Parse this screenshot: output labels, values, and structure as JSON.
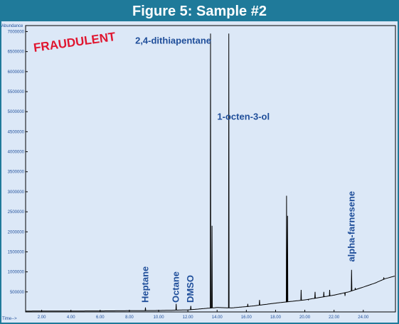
{
  "figure_title": "Figure 5: Sample #2",
  "stamp": "FRAUDULENT",
  "colors": {
    "header": "#1f7a9a",
    "plot_bg": "#dce8f7",
    "trace": "#000000",
    "label": "#1f4e9a",
    "stamp": "#e0152f"
  },
  "chart_data": {
    "type": "line",
    "ylabel": "Abundance",
    "xlabel": "Time-->",
    "xlim": [
      0.9,
      26.2
    ],
    "ylim": [
      0,
      7150000
    ],
    "x_ticks": [
      "2.00",
      "4.00",
      "6.00",
      "8.00",
      "10.00",
      "12.00",
      "14.00",
      "16.00",
      "18.00",
      "20.00",
      "22.00",
      "24.00"
    ],
    "y_ticks": [
      "7000000",
      "6500000",
      "6000000",
      "5500000",
      "5000000",
      "4500000",
      "4000000",
      "3500000",
      "3000000",
      "2500000",
      "2000000",
      "1500000",
      "1000000",
      "500000"
    ],
    "baseline": [
      [
        0.9,
        20000
      ],
      [
        6,
        25000
      ],
      [
        10,
        35000
      ],
      [
        12,
        50000
      ],
      [
        13.3,
        90000
      ],
      [
        14,
        110000
      ],
      [
        15,
        100000
      ],
      [
        16.5,
        150000
      ],
      [
        18,
        220000
      ],
      [
        19,
        260000
      ],
      [
        20,
        300000
      ],
      [
        21,
        360000
      ],
      [
        22,
        420000
      ],
      [
        23,
        500000
      ],
      [
        24,
        620000
      ],
      [
        24.8,
        720000
      ],
      [
        25.5,
        830000
      ],
      [
        26.2,
        900000
      ]
    ],
    "peaks": [
      {
        "x": 9.1,
        "y": 110000
      },
      {
        "x": 11.2,
        "y": 200000
      },
      {
        "x": 12.2,
        "y": 150000
      },
      {
        "x": 13.55,
        "y": 6950000
      },
      {
        "x": 13.65,
        "y": 2150000
      },
      {
        "x": 14.8,
        "y": 6950000
      },
      {
        "x": 16.1,
        "y": 200000
      },
      {
        "x": 16.9,
        "y": 300000
      },
      {
        "x": 18.75,
        "y": 2900000
      },
      {
        "x": 18.82,
        "y": 2400000
      },
      {
        "x": 19.75,
        "y": 550000
      },
      {
        "x": 20.25,
        "y": 300000
      },
      {
        "x": 20.7,
        "y": 500000
      },
      {
        "x": 21.3,
        "y": 500000
      },
      {
        "x": 21.7,
        "y": 550000
      },
      {
        "x": 22.05,
        "y": 420000
      },
      {
        "x": 22.45,
        "y": 450000
      },
      {
        "x": 22.75,
        "y": 400000
      },
      {
        "x": 23.2,
        "y": 1050000
      },
      {
        "x": 23.45,
        "y": 600000
      },
      {
        "x": 25.4,
        "y": 860000
      }
    ],
    "annotations": [
      {
        "text": "2,4-dithiapentane",
        "x": 13.6,
        "y": 6700000,
        "orient": "horizontal",
        "anchor": "end"
      },
      {
        "text": "1-octen-3-ol",
        "x": 15.8,
        "y": 4800000,
        "orient": "horizontal",
        "anchor": "middle"
      },
      {
        "text": "Heptane",
        "x": 9.1,
        "y": 230000,
        "orient": "vertical"
      },
      {
        "text": "Octane",
        "x": 11.2,
        "y": 230000,
        "orient": "vertical"
      },
      {
        "text": "DMSO",
        "x": 12.2,
        "y": 230000,
        "orient": "vertical"
      },
      {
        "text": "alpha-farnesene",
        "x": 23.2,
        "y": 1250000,
        "orient": "vertical"
      }
    ]
  }
}
